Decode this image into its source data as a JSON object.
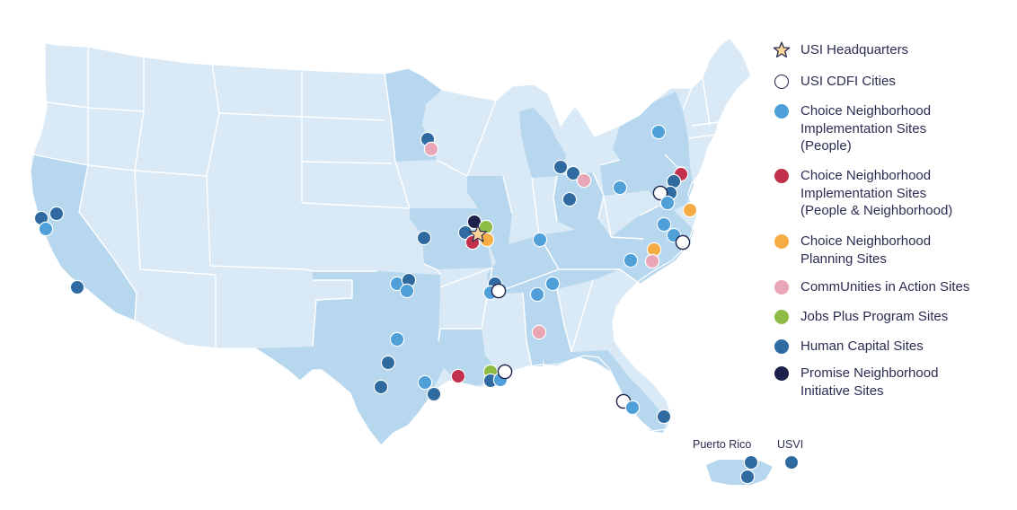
{
  "colors": {
    "program_state": "#b7d7ee",
    "other_state": "#d9e9f5",
    "state_border": "#ffffff",
    "hq_star": "#fcd59a",
    "cdfi": "#ffffff",
    "choice_people": "#4f9fd9",
    "choice_people_neighborhood": "#c2304e",
    "choice_planning": "#f5ac44",
    "communities_in_action": "#e8a6b6",
    "jobs_plus": "#8dbc44",
    "human_capital": "#2f6ba0",
    "promise_neighborhood": "#1d2149"
  },
  "legend": [
    {
      "key": "hq",
      "icon": "star-icon",
      "label": "USI Headquarters"
    },
    {
      "key": "cdfi",
      "icon": "hollow-circle-icon",
      "label": "USI CDFI Cities"
    },
    {
      "key": "choice_people",
      "icon": "light-blue-dot-icon",
      "label": "Choice Neighborhood\nImplementation Sites\n(People)"
    },
    {
      "key": "choice_people_neighborhood",
      "icon": "red-dot-icon",
      "label": "Choice Neighborhood\nImplementation Sites\n(People & Neighborhood)"
    },
    {
      "key": "choice_planning",
      "icon": "orange-dot-icon",
      "label": "Choice Neighborhood\nPlanning Sites"
    },
    {
      "key": "communities_in_action",
      "icon": "pink-dot-icon",
      "label": "CommUnities in Action Sites"
    },
    {
      "key": "jobs_plus",
      "icon": "green-dot-icon",
      "label": "Jobs Plus Program Sites"
    },
    {
      "key": "human_capital",
      "icon": "dark-blue-dot-icon",
      "label": "Human Capital Sites"
    },
    {
      "key": "promise_neighborhood",
      "icon": "navy-dot-icon",
      "label": "Promise Neighborhood\nInitiative Sites"
    }
  ],
  "territories": {
    "puerto_rico": "Puerto Rico",
    "usvi": "USVI"
  }
}
